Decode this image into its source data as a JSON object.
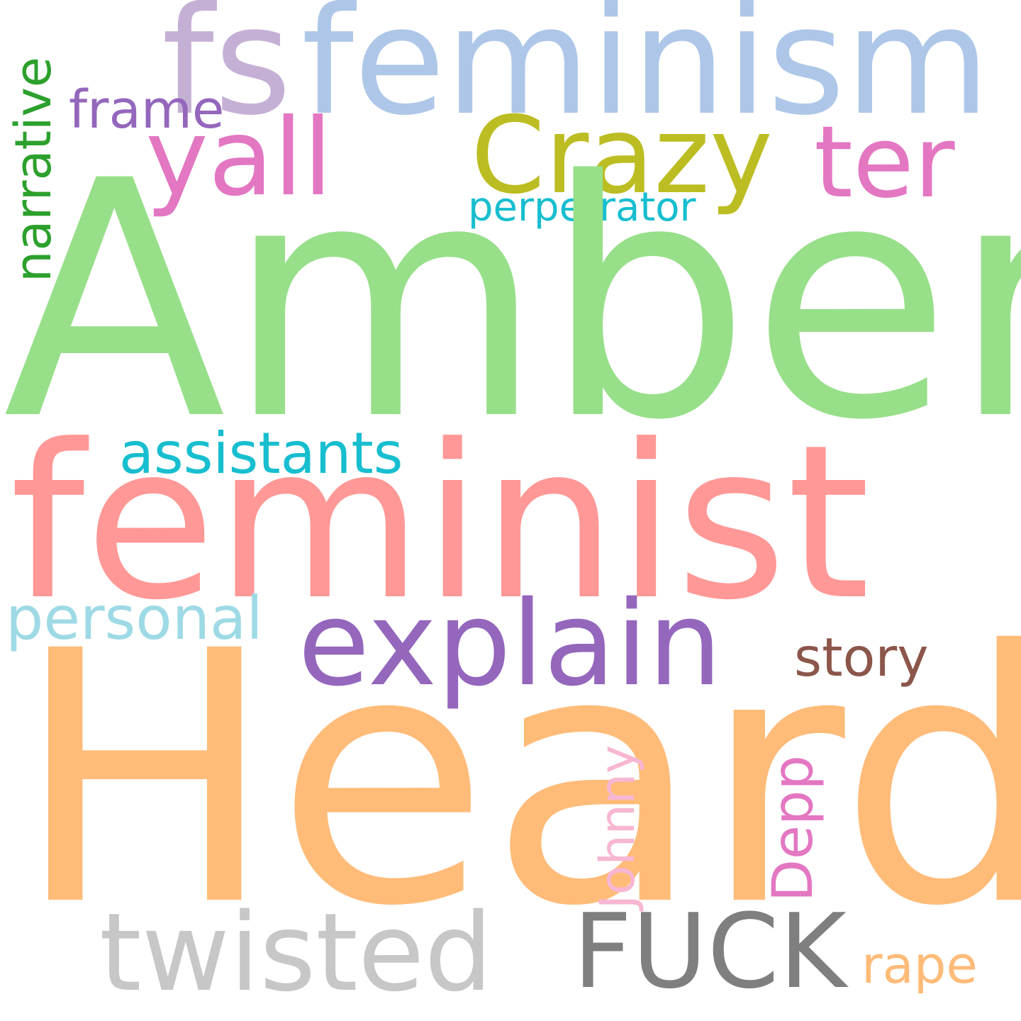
{
  "word_cloud": {
    "background": "#ffffff",
    "words": {
      "amber": {
        "text": "Amber",
        "color": "#98df8a",
        "orientation": "horizontal"
      },
      "heard": {
        "text": "Heard",
        "color": "#ffbb78",
        "orientation": "horizontal"
      },
      "feminist": {
        "text": "feminist",
        "color": "#ff9896",
        "orientation": "horizontal"
      },
      "feminism": {
        "text": "feminism",
        "color": "#aec7e8",
        "orientation": "horizontal"
      },
      "fs": {
        "text": "fs",
        "color": "#c5b0d5",
        "orientation": "horizontal"
      },
      "yall": {
        "text": "yall",
        "color": "#e377c2",
        "orientation": "horizontal"
      },
      "crazy": {
        "text": "Crazy",
        "color": "#bcbd22",
        "orientation": "horizontal"
      },
      "ter": {
        "text": "ter",
        "color": "#e377c2",
        "orientation": "horizontal"
      },
      "explain": {
        "text": "explain",
        "color": "#9467bd",
        "orientation": "horizontal"
      },
      "twisted": {
        "text": "twisted",
        "color": "#c7c7c7",
        "orientation": "horizontal"
      },
      "fuck": {
        "text": "FUCK",
        "color": "#7f7f7f",
        "orientation": "horizontal"
      },
      "assistants": {
        "text": "assistants",
        "color": "#17becf",
        "orientation": "horizontal"
      },
      "personal": {
        "text": "personal",
        "color": "#9edae5",
        "orientation": "horizontal"
      },
      "frame": {
        "text": "frame",
        "color": "#9467bd",
        "orientation": "horizontal"
      },
      "perpetrator": {
        "text": "perpetrator",
        "color": "#17becf",
        "orientation": "horizontal"
      },
      "story": {
        "text": "story",
        "color": "#8c564b",
        "orientation": "horizontal"
      },
      "rape": {
        "text": "rape",
        "color": "#ffbb78",
        "orientation": "horizontal"
      },
      "narrative": {
        "text": "narrative",
        "color": "#2ca02c",
        "orientation": "vertical"
      },
      "johnny": {
        "text": "Johnny",
        "color": "#f7b6d2",
        "orientation": "vertical"
      },
      "depp": {
        "text": "Depp",
        "color": "#e377c2",
        "orientation": "vertical"
      }
    }
  }
}
